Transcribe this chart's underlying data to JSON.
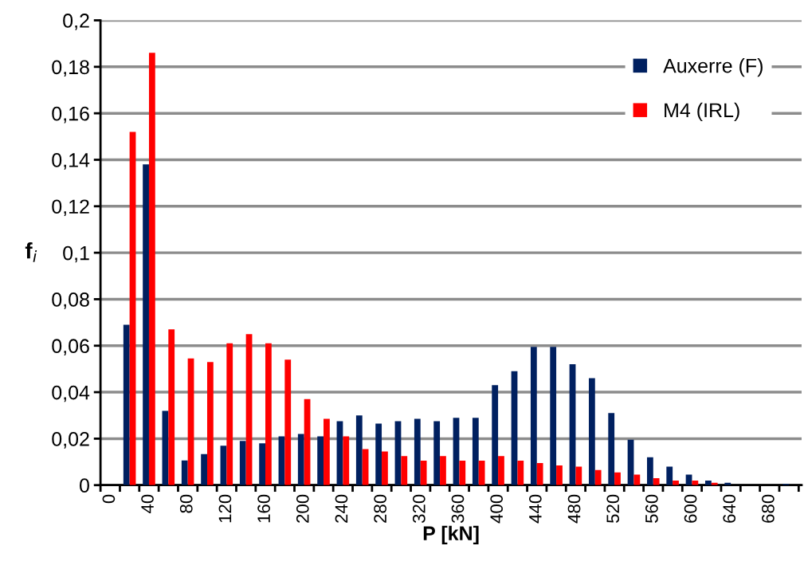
{
  "chart_data": {
    "type": "bar",
    "xlabel": "P [kN]",
    "ylabel": "f$_{i}$",
    "categories": [
      "0",
      null,
      "40",
      null,
      "80",
      null,
      "120",
      null,
      "160",
      null,
      "200",
      null,
      "240",
      null,
      "280",
      null,
      "320",
      null,
      "360",
      null,
      "400",
      null,
      "440",
      null,
      "480",
      null,
      "520",
      null,
      "560",
      null,
      "600",
      null,
      "640",
      null,
      "680",
      null
    ],
    "series": [
      {
        "name": "Auxerre (F)",
        "color": "#002060",
        "values": [
          0,
          0.069,
          0.138,
          0.032,
          0.0106,
          0.0134,
          0.017,
          0.019,
          0.018,
          0.021,
          0.022,
          0.021,
          0.0275,
          0.03,
          0.0265,
          0.0275,
          0.0285,
          0.0275,
          0.029,
          0.029,
          0.043,
          0.049,
          0.0595,
          0.0595,
          0.052,
          0.046,
          0.031,
          0.0195,
          0.012,
          0.008,
          0.0045,
          0.002,
          0.001,
          null,
          null,
          0.0005
        ]
      },
      {
        "name": "M4 (IRL)",
        "color": "#ff0000",
        "values": [
          0,
          0.152,
          0.186,
          0.067,
          0.0545,
          0.053,
          0.061,
          0.065,
          0.061,
          0.054,
          0.037,
          0.0285,
          0.021,
          0.0155,
          0.0145,
          0.0125,
          0.0105,
          0.0125,
          0.0105,
          0.0105,
          0.0125,
          0.0105,
          0.0095,
          0.0085,
          0.008,
          0.0065,
          0.0055,
          0.0045,
          0.003,
          0.002,
          0.002,
          0.001,
          0,
          null,
          null,
          0
        ]
      }
    ],
    "ylim": [
      0,
      0.2
    ],
    "yticks": [
      0,
      {
        "value": 0.02,
        "label": "0,02"
      },
      {
        "value": 0.04,
        "label": "0,04"
      },
      {
        "value": 0.06,
        "label": "0,06"
      },
      {
        "value": 0.08,
        "label": "0,08"
      },
      {
        "value": 0.1,
        "label": "0,1"
      },
      {
        "value": 0.12,
        "label": "0,12"
      },
      {
        "value": 0.14,
        "label": "0,14"
      },
      {
        "value": 0.16,
        "label": "0,16"
      },
      {
        "value": 0.18,
        "label": "0,18"
      },
      {
        "value": 0.2,
        "label": "0,2"
      }
    ],
    "grid": "y",
    "legend": "top right"
  }
}
